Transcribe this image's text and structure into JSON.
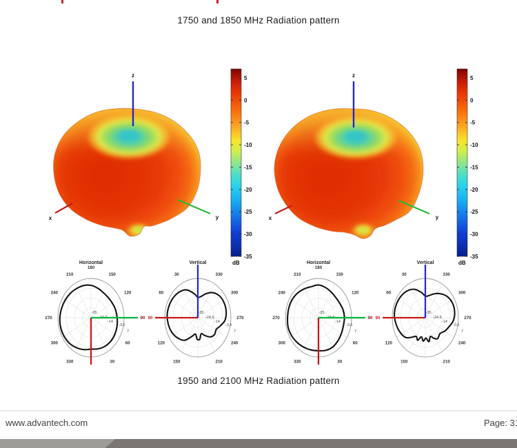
{
  "page": {
    "top_caption": "1750 and 1850 MHz Radiation pattern",
    "bottom_caption": "1950 and 2100 MHz Radiation pattern"
  },
  "footer": {
    "website": "www.advantech.com",
    "page_label": "Page: 31"
  },
  "colors": {
    "axis_x_red": "#c41c1c",
    "axis_y_green": "#28b937",
    "axis_z_blue": "#2626c9",
    "polar_green": "#00b43c",
    "polar_red": "#cc1616",
    "polar_blue": "#2a2ac8",
    "curve_black": "#141414",
    "grid_gray": "#b5b5b5",
    "outer_ring_gray": "#979797",
    "label_90_dark": "#8a1515",
    "label_90_red": "#cc1c1c",
    "bar_light": "#9d9c99",
    "bar_dark": "#7a7672",
    "red_mark": "#d01f26",
    "jet": [
      [
        "0",
        "#7a0403"
      ],
      [
        "0.06",
        "#c21a05"
      ],
      [
        "0.13",
        "#e93806"
      ],
      [
        "0.22",
        "#f96b0b"
      ],
      [
        "0.30",
        "#fda124"
      ],
      [
        "0.38",
        "#f7e32e"
      ],
      [
        "0.44",
        "#d0ee4e"
      ],
      [
        "0.50",
        "#8fe68a"
      ],
      [
        "0.56",
        "#52dec6"
      ],
      [
        "0.62",
        "#2ad4ea"
      ],
      [
        "0.70",
        "#19aef2"
      ],
      [
        "0.78",
        "#1579e8"
      ],
      [
        "0.87",
        "#1241d6"
      ],
      [
        "1",
        "#071f8f"
      ]
    ]
  },
  "chart_data": [
    {
      "type": "surface3d",
      "band": "1750 MHz",
      "title": "",
      "axis_labels": {
        "x": "x",
        "y": "y",
        "z": "z"
      },
      "colorbar": {
        "label": "dB",
        "tick_values": [
          5,
          0,
          -5,
          -10,
          -15,
          -20,
          -25,
          -30,
          -35
        ],
        "value_range": [
          7,
          -35
        ]
      },
      "notes": "toroidal omni pattern, max ~5 dB (red) on horizon, null along +z (cyan dimple ~-20 dB), small null at -z",
      "silhouette": [
        [
          0,
          1.0
        ],
        [
          18,
          1.01
        ],
        [
          36,
          1.02
        ],
        [
          52,
          0.98
        ],
        [
          62,
          0.96
        ],
        [
          70,
          0.95
        ],
        [
          76,
          0.93
        ],
        [
          81,
          1.03
        ],
        [
          88,
          1.05
        ],
        [
          94,
          0.96
        ],
        [
          102,
          0.94
        ],
        [
          112,
          0.95
        ],
        [
          126,
          0.97
        ],
        [
          142,
          1.0
        ],
        [
          158,
          1.01
        ],
        [
          175,
          1.01
        ],
        [
          192,
          1.02
        ],
        [
          210,
          1.02
        ],
        [
          228,
          1.0
        ],
        [
          245,
          0.98
        ],
        [
          262,
          0.95
        ],
        [
          278,
          0.94
        ],
        [
          295,
          0.96
        ],
        [
          312,
          0.98
        ],
        [
          330,
          1.0
        ],
        [
          345,
          1.01
        ]
      ]
    },
    {
      "type": "surface3d",
      "band": "1850 MHz",
      "title": "",
      "axis_labels": {
        "x": "x",
        "y": "y",
        "z": "z"
      },
      "colorbar": {
        "label": "dB",
        "tick_values": [
          5,
          0,
          -5,
          -10,
          -15,
          -20,
          -25,
          -30,
          -35
        ],
        "value_range": [
          7,
          -35
        ]
      },
      "notes": "toroidal omni pattern, max ~5 dB (red) on horizon, null along +z (cyan dimple), small green null lobe at -z",
      "silhouette": [
        [
          0,
          1.0
        ],
        [
          18,
          1.0
        ],
        [
          36,
          1.02
        ],
        [
          50,
          0.97
        ],
        [
          60,
          0.95
        ],
        [
          68,
          0.94
        ],
        [
          74,
          1.02
        ],
        [
          80,
          1.04
        ],
        [
          86,
          0.97
        ],
        [
          94,
          0.93
        ],
        [
          104,
          0.94
        ],
        [
          118,
          0.96
        ],
        [
          134,
          0.99
        ],
        [
          150,
          1.0
        ],
        [
          166,
          1.01
        ],
        [
          184,
          1.02
        ],
        [
          202,
          1.02
        ],
        [
          220,
          1.01
        ],
        [
          238,
          0.99
        ],
        [
          256,
          0.96
        ],
        [
          272,
          0.94
        ],
        [
          288,
          0.96
        ],
        [
          306,
          0.98
        ],
        [
          324,
          1.0
        ],
        [
          342,
          1.01
        ]
      ]
    },
    {
      "type": "polar",
      "band": "1750 MHz",
      "cut": "Horizontal",
      "angle_labels": [
        30,
        60,
        90,
        120,
        150,
        180,
        210,
        240,
        270,
        300,
        330
      ],
      "ring_labels": [
        "-35",
        "-24.5",
        "-14",
        "-3.5",
        "7"
      ],
      "radial_axis_dB": {
        "center": -35,
        "rings": [
          -24.5,
          -14,
          -3.5,
          7
        ]
      },
      "curve": [
        [
          0,
          0.8
        ],
        [
          15,
          0.82
        ],
        [
          30,
          0.84
        ],
        [
          45,
          0.845
        ],
        [
          60,
          0.835
        ],
        [
          75,
          0.815
        ],
        [
          90,
          0.79
        ],
        [
          105,
          0.77
        ],
        [
          120,
          0.745
        ],
        [
          135,
          0.73
        ],
        [
          150,
          0.74
        ],
        [
          165,
          0.78
        ],
        [
          180,
          0.825
        ],
        [
          195,
          0.85
        ],
        [
          210,
          0.86
        ],
        [
          225,
          0.88
        ],
        [
          240,
          0.9
        ],
        [
          255,
          0.92
        ],
        [
          270,
          0.94
        ],
        [
          285,
          0.95
        ],
        [
          300,
          0.94
        ],
        [
          315,
          0.92
        ],
        [
          330,
          0.88
        ],
        [
          345,
          0.84
        ]
      ]
    },
    {
      "type": "polar",
      "band": "1750 MHz",
      "cut": "Vertical",
      "angle_labels": [
        30,
        60,
        90,
        120,
        150,
        210,
        240,
        270,
        300,
        330
      ],
      "ring_labels": [
        "-35",
        "-24.5",
        "-14",
        "-3.5",
        "7"
      ],
      "radial_axis_dB": {
        "center": -35,
        "rings": [
          -24.5,
          -14,
          -3.5,
          7
        ]
      },
      "curve": [
        [
          0,
          0.52
        ],
        [
          10,
          0.62
        ],
        [
          25,
          0.78
        ],
        [
          40,
          0.86
        ],
        [
          55,
          0.9
        ],
        [
          70,
          0.92
        ],
        [
          85,
          0.93
        ],
        [
          100,
          0.91
        ],
        [
          115,
          0.87
        ],
        [
          130,
          0.8
        ],
        [
          145,
          0.7
        ],
        [
          160,
          0.5
        ],
        [
          170,
          0.42
        ],
        [
          178,
          0.55
        ],
        [
          186,
          0.55
        ],
        [
          194,
          0.42
        ],
        [
          205,
          0.5
        ],
        [
          218,
          0.62
        ],
        [
          230,
          0.66
        ],
        [
          242,
          0.63
        ],
        [
          252,
          0.7
        ],
        [
          265,
          0.82
        ],
        [
          280,
          0.87
        ],
        [
          295,
          0.88
        ],
        [
          310,
          0.86
        ],
        [
          325,
          0.78
        ],
        [
          338,
          0.66
        ],
        [
          350,
          0.55
        ]
      ]
    },
    {
      "type": "polar",
      "band": "1850 MHz",
      "cut": "Horizontal",
      "angle_labels": [
        30,
        60,
        90,
        120,
        150,
        180,
        210,
        240,
        270,
        300,
        330
      ],
      "ring_labels": [
        "-35",
        "-24.5",
        "-14",
        "-3.5",
        "7"
      ],
      "radial_axis_dB": {
        "center": -35,
        "rings": [
          -24.5,
          -14,
          -3.5,
          7
        ]
      },
      "curve": [
        [
          0,
          0.84
        ],
        [
          15,
          0.86
        ],
        [
          30,
          0.86
        ],
        [
          45,
          0.83
        ],
        [
          60,
          0.8
        ],
        [
          75,
          0.78
        ],
        [
          90,
          0.785
        ],
        [
          105,
          0.77
        ],
        [
          120,
          0.74
        ],
        [
          135,
          0.735
        ],
        [
          150,
          0.76
        ],
        [
          165,
          0.8
        ],
        [
          180,
          0.835
        ],
        [
          195,
          0.82
        ],
        [
          210,
          0.85
        ],
        [
          225,
          0.89
        ],
        [
          240,
          0.92
        ],
        [
          255,
          0.93
        ],
        [
          270,
          0.935
        ],
        [
          285,
          0.95
        ],
        [
          300,
          0.93
        ],
        [
          315,
          0.9
        ],
        [
          330,
          0.87
        ],
        [
          345,
          0.85
        ]
      ]
    },
    {
      "type": "polar",
      "band": "1850 MHz",
      "cut": "Vertical",
      "angle_labels": [
        30,
        60,
        90,
        120,
        150,
        210,
        240,
        270,
        300,
        330
      ],
      "ring_labels": [
        "-35",
        "-24.5",
        "-14",
        "-3.5",
        "7"
      ],
      "radial_axis_dB": {
        "center": -35,
        "rings": [
          -24.5,
          -14,
          -3.5,
          7
        ]
      },
      "curve": [
        [
          0,
          0.55
        ],
        [
          10,
          0.65
        ],
        [
          25,
          0.8
        ],
        [
          40,
          0.88
        ],
        [
          55,
          0.92
        ],
        [
          70,
          0.94
        ],
        [
          85,
          0.94
        ],
        [
          100,
          0.9
        ],
        [
          115,
          0.85
        ],
        [
          130,
          0.78
        ],
        [
          140,
          0.65
        ],
        [
          150,
          0.55
        ],
        [
          158,
          0.62
        ],
        [
          166,
          0.5
        ],
        [
          174,
          0.6
        ],
        [
          182,
          0.52
        ],
        [
          190,
          0.62
        ],
        [
          198,
          0.5
        ],
        [
          206,
          0.58
        ],
        [
          215,
          0.65
        ],
        [
          228,
          0.6
        ],
        [
          240,
          0.68
        ],
        [
          252,
          0.75
        ],
        [
          265,
          0.85
        ],
        [
          280,
          0.9
        ],
        [
          295,
          0.9
        ],
        [
          310,
          0.85
        ],
        [
          325,
          0.75
        ],
        [
          338,
          0.65
        ],
        [
          350,
          0.57
        ]
      ]
    }
  ]
}
